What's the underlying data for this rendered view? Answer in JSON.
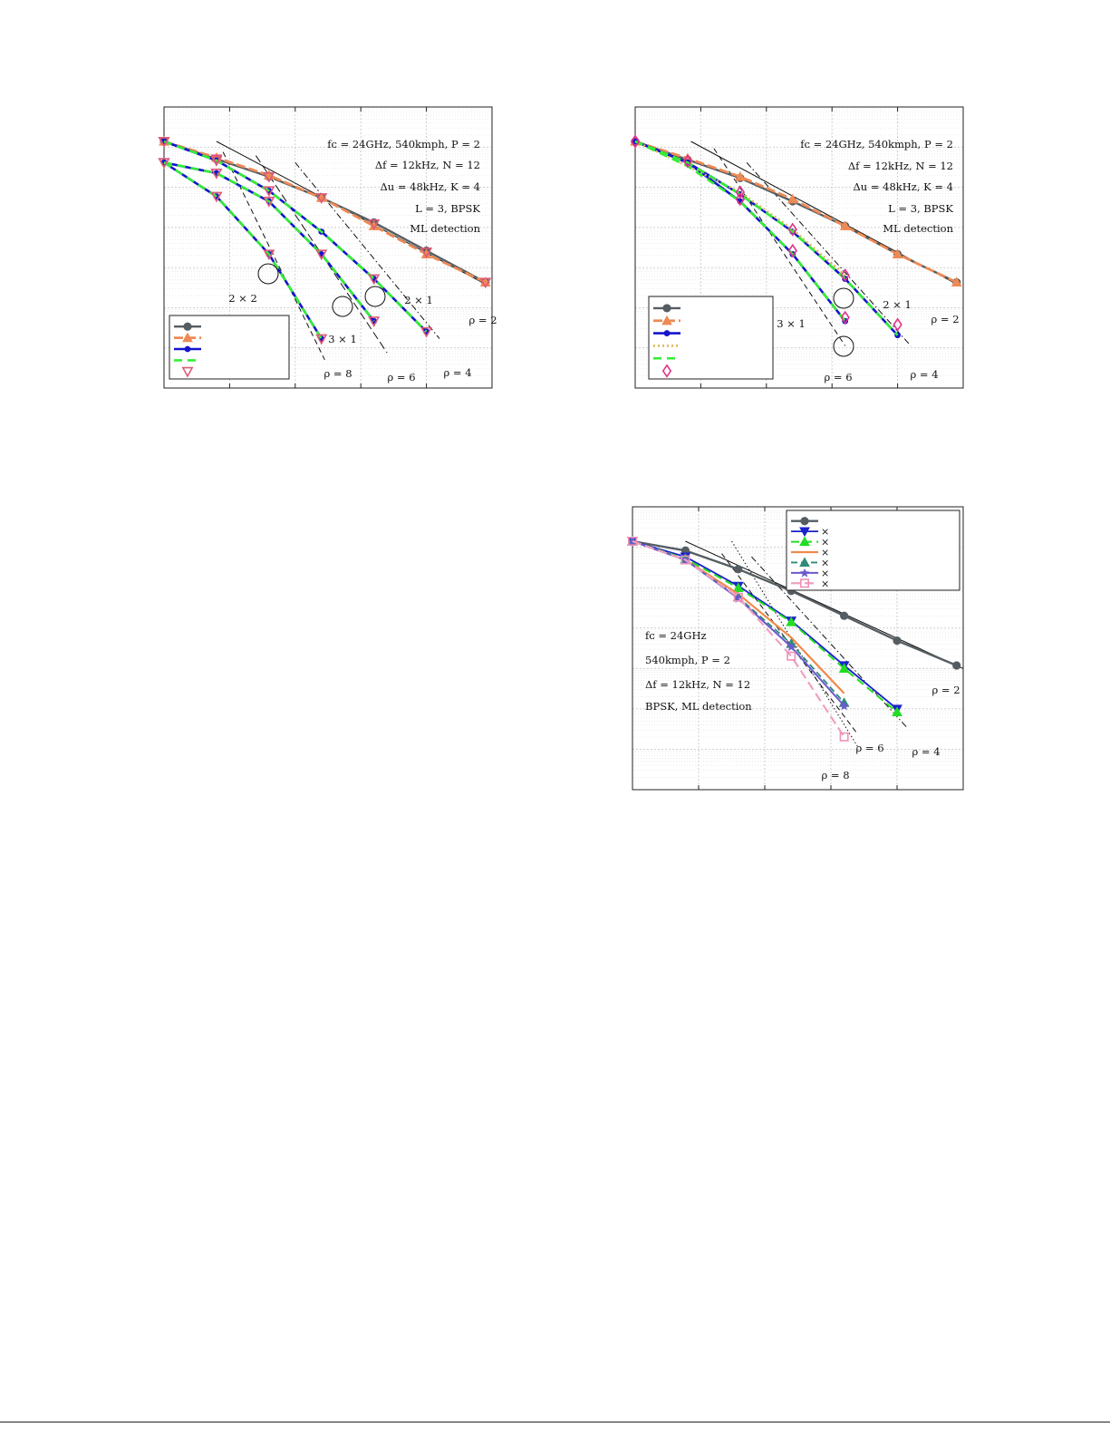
{
  "chart_data": [
    {
      "type": "line",
      "yscale": "log",
      "xlim": [
        0,
        5
      ],
      "ylim": [
        0,
        3.5
      ],
      "grid": "on",
      "legend": {
        "position": "bottom-left",
        "entries": [
          "",
          "",
          "",
          "",
          ""
        ]
      },
      "annotations": [
        "$f_c = 24$GHz, 540kmph, $P = 2$",
        "$\\Delta f = 12$kHz, $N = 12$",
        "$\\Delta u = 48$kHz, $K = 4$",
        "$L = 3$, BPSK",
        "ML detection"
      ],
      "config_labels": [
        "2 × 2",
        "3 × 1",
        "2 × 1"
      ],
      "slope_labels": [
        "ρ = 2",
        "ρ = 4",
        "ρ = 6",
        "ρ = 8"
      ],
      "series": [
        {
          "style": "gray-circle",
          "x": [
            0,
            0.8,
            1.6,
            2.4,
            3.2,
            4.0,
            4.9
          ],
          "y": [
            0.0,
            0.25,
            0.5,
            0.8,
            1.15,
            1.55,
            2.0
          ]
        },
        {
          "style": "orange-triangle",
          "x": [
            0,
            0.8,
            1.6,
            2.4,
            3.2,
            4.0,
            4.9
          ],
          "y": [
            0.0,
            0.23,
            0.48,
            0.8,
            1.2,
            1.6,
            2.0
          ]
        },
        {
          "style": "blue-dot",
          "x": [
            0,
            0.8,
            1.6,
            2.4,
            3.2,
            4.0
          ],
          "y": [
            0.0,
            0.27,
            0.7,
            1.28,
            1.95,
            2.7
          ]
        },
        {
          "style": "blue-dot",
          "x": [
            0,
            0.8,
            1.6,
            2.4,
            3.2
          ],
          "y": [
            0.3,
            0.45,
            0.85,
            1.6,
            2.55
          ]
        },
        {
          "style": "blue-dot",
          "x": [
            0,
            0.8,
            1.6,
            2.4
          ],
          "y": [
            0.3,
            0.78,
            1.6,
            2.8
          ]
        },
        {
          "style": "green-dash",
          "x": [
            0,
            0.8,
            1.6,
            2.4,
            3.2,
            4.0
          ],
          "y": [
            0.0,
            0.27,
            0.7,
            1.28,
            1.95,
            2.7
          ]
        },
        {
          "style": "green-dash",
          "x": [
            0,
            0.8,
            1.6,
            2.4,
            3.2
          ],
          "y": [
            0.3,
            0.45,
            0.85,
            1.6,
            2.55
          ]
        },
        {
          "style": "green-dash",
          "x": [
            0,
            0.8,
            1.6,
            2.4
          ],
          "y": [
            0.3,
            0.78,
            1.6,
            2.8
          ]
        },
        {
          "style": "pink-triangle-down",
          "x": [
            0,
            0.8,
            1.6,
            2.4,
            3.2,
            4.0,
            4.9
          ],
          "y": [
            0.0,
            0.25,
            0.5,
            0.8,
            1.17,
            1.57,
            2.0
          ]
        },
        {
          "style": "pink-triangle-down",
          "x": [
            0,
            0.8,
            1.6,
            3.2,
            4.0
          ],
          "y": [
            0.0,
            0.27,
            0.7,
            1.95,
            2.7
          ]
        },
        {
          "style": "pink-triangle-down",
          "x": [
            0,
            0.8,
            1.6,
            2.4,
            3.2
          ],
          "y": [
            0.3,
            0.45,
            0.85,
            1.6,
            2.55
          ]
        },
        {
          "style": "pink-triangle-down",
          "x": [
            0,
            0.8,
            1.6,
            2.4
          ],
          "y": [
            0.3,
            0.78,
            1.6,
            2.8
          ]
        }
      ],
      "slope_lines": [
        {
          "label": "ρ = 2",
          "x": [
            0.8,
            4.95
          ],
          "y": [
            0.0,
            2.05
          ],
          "dash": "solid"
        },
        {
          "label": "ρ = 4",
          "x": [
            2.0,
            4.2
          ],
          "y": [
            0.3,
            2.8
          ],
          "dash": "dashdot"
        },
        {
          "label": "ρ = 6",
          "x": [
            1.4,
            3.4
          ],
          "y": [
            0.2,
            3.0
          ],
          "dash": "longdash"
        },
        {
          "label": "ρ = 8",
          "x": [
            0.9,
            2.45
          ],
          "y": [
            0.15,
            3.1
          ],
          "dash": "dash"
        }
      ]
    },
    {
      "type": "line",
      "yscale": "log",
      "xlim": [
        0,
        5
      ],
      "ylim": [
        0,
        3.5
      ],
      "grid": "on",
      "legend": {
        "position": "bottom-left",
        "entries": [
          "",
          "",
          "",
          "",
          "",
          ""
        ]
      },
      "annotations": [
        "$f_c = 24$GHz, 540kmph, $P = 2$",
        "$\\Delta f = 12$kHz, $N = 12$",
        "$\\Delta u = 48$kHz, $K = 4$",
        "$L = 3$, BPSK",
        "ML detection"
      ],
      "config_labels": [
        "2 × 1",
        "3 × 1"
      ],
      "slope_labels": [
        "ρ = 2",
        "ρ = 4",
        "ρ = 6"
      ],
      "series": [
        {
          "style": "gray-circle",
          "x": [
            0,
            0.8,
            1.6,
            2.4,
            3.2,
            4.0,
            4.9
          ],
          "y": [
            0.0,
            0.26,
            0.52,
            0.85,
            1.2,
            1.6,
            2.0
          ]
        },
        {
          "style": "orange-triangle",
          "x": [
            0,
            0.8,
            1.6,
            2.4,
            3.2,
            4.0,
            4.9
          ],
          "y": [
            0.0,
            0.24,
            0.5,
            0.82,
            1.2,
            1.6,
            2.0
          ]
        },
        {
          "style": "blue-dot",
          "x": [
            0,
            0.8,
            1.6,
            2.4,
            3.2,
            4.0
          ],
          "y": [
            0.0,
            0.3,
            0.75,
            1.28,
            1.95,
            2.75
          ]
        },
        {
          "style": "blue-dot",
          "x": [
            0,
            0.8,
            1.6,
            2.4,
            3.2
          ],
          "y": [
            0.0,
            0.3,
            0.85,
            1.6,
            2.55
          ]
        },
        {
          "style": "gold-dot",
          "x": [
            0,
            0.8,
            1.6,
            2.4,
            3.2
          ],
          "y": [
            0.0,
            0.35,
            0.72,
            1.25,
            1.9
          ]
        },
        {
          "style": "green-dash",
          "x": [
            0,
            0.8,
            1.6,
            2.4,
            3.2,
            4.0
          ],
          "y": [
            0.0,
            0.3,
            0.75,
            1.28,
            1.95,
            2.75
          ]
        },
        {
          "style": "green-dash",
          "x": [
            0,
            0.8,
            1.6,
            2.4,
            3.2
          ],
          "y": [
            0.0,
            0.35,
            0.85,
            1.6,
            2.55
          ]
        },
        {
          "style": "magenta-diamond",
          "x": [
            0,
            0.8,
            1.6,
            2.4,
            3.2,
            4.0
          ],
          "y": [
            0.0,
            0.28,
            0.72,
            1.25,
            1.9,
            2.6
          ]
        },
        {
          "style": "magenta-diamond",
          "x": [
            0,
            0.8,
            1.6,
            2.4,
            3.2
          ],
          "y": [
            0.0,
            0.28,
            0.82,
            1.55,
            2.5
          ]
        }
      ],
      "slope_lines": [
        {
          "label": "ρ = 2",
          "x": [
            0.85,
            4.95
          ],
          "y": [
            0.0,
            2.05
          ],
          "dash": "solid"
        },
        {
          "label": "ρ = 4",
          "x": [
            1.7,
            4.2
          ],
          "y": [
            0.3,
            2.9
          ],
          "dash": "dashdot"
        },
        {
          "label": "ρ = 6",
          "x": [
            1.2,
            3.2
          ],
          "y": [
            0.1,
            2.9
          ],
          "dash": "dash"
        }
      ]
    },
    {
      "type": "line",
      "yscale": "log",
      "xlim": [
        0,
        5
      ],
      "ylim": [
        0,
        4
      ],
      "grid": "on",
      "legend": {
        "position": "top-right",
        "entries": [
          "",
          "×",
          "×",
          "×",
          "×",
          "×",
          "×"
        ]
      },
      "annotations": [
        "$f_c = 24$GHz",
        "540kmph, $P = 2$",
        "$\\Delta f = 12$kHz, $N = 12$",
        "BPSK, ML detection"
      ],
      "slope_labels": [
        "ρ = 2",
        "ρ = 4",
        "ρ = 6",
        "ρ = 8"
      ],
      "series": [
        {
          "style": "gray-circle",
          "x": [
            0,
            0.8,
            1.6,
            2.4,
            3.2,
            4.0,
            4.9
          ],
          "y": [
            0.0,
            0.15,
            0.45,
            0.8,
            1.2,
            1.6,
            2.0
          ]
        },
        {
          "style": "blue-down",
          "x": [
            0,
            0.8,
            1.6,
            2.4,
            3.2,
            4.0
          ],
          "y": [
            0.0,
            0.25,
            0.72,
            1.28,
            2.0,
            2.7
          ]
        },
        {
          "style": "green-up",
          "x": [
            0,
            0.8,
            1.6,
            2.4,
            3.2,
            4.0
          ],
          "y": [
            0.0,
            0.28,
            0.75,
            1.3,
            2.05,
            2.75
          ]
        },
        {
          "style": "orange-line",
          "x": [
            0,
            0.8,
            1.6,
            2.4,
            3.2
          ],
          "y": [
            0.0,
            0.3,
            0.85,
            1.55,
            2.45
          ]
        },
        {
          "style": "teal-up",
          "x": [
            0,
            0.8,
            1.6,
            2.4,
            3.2
          ],
          "y": [
            0.0,
            0.3,
            0.9,
            1.65,
            2.6
          ]
        },
        {
          "style": "purple-star",
          "x": [
            0,
            0.8,
            1.6,
            2.4,
            3.2
          ],
          "y": [
            0.0,
            0.3,
            0.92,
            1.7,
            2.65
          ]
        },
        {
          "style": "pink-square",
          "x": [
            0,
            0.8,
            1.6,
            2.4,
            3.2
          ],
          "y": [
            0.0,
            0.3,
            0.9,
            1.85,
            3.15
          ]
        }
      ],
      "slope_lines": [
        {
          "label": "ρ = 2",
          "x": [
            0.8,
            5.0
          ],
          "y": [
            0.0,
            2.05
          ],
          "dash": "solid"
        },
        {
          "label": "ρ = 4",
          "x": [
            1.8,
            4.15
          ],
          "y": [
            0.25,
            3.0
          ],
          "dash": "dashdot"
        },
        {
          "label": "ρ = 6",
          "x": [
            1.35,
            3.4
          ],
          "y": [
            0.2,
            3.1
          ],
          "dash": "dash"
        },
        {
          "label": "ρ = 8",
          "x": [
            1.5,
            3.4
          ],
          "y": [
            0.0,
            3.3
          ],
          "dash": "dot"
        }
      ]
    }
  ]
}
